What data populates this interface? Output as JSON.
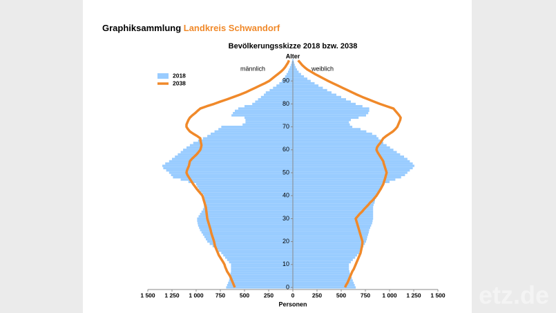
{
  "header": {
    "title": "Graphiksammlung",
    "title_highlight": "Landkreis Schwandorf"
  },
  "watermark": "etz.de",
  "chart_data": {
    "type": "population-pyramid",
    "title": "Bevölkerungsskizze 2018 bzw. 2038",
    "y_label": "Alter",
    "x_label": "Personen",
    "left_label": "männlich",
    "right_label": "weiblich",
    "ages": [
      0,
      1,
      2,
      3,
      4,
      5,
      6,
      7,
      8,
      9,
      10,
      11,
      12,
      13,
      14,
      15,
      16,
      17,
      18,
      19,
      20,
      21,
      22,
      23,
      24,
      25,
      26,
      27,
      28,
      29,
      30,
      31,
      32,
      33,
      34,
      35,
      36,
      37,
      38,
      39,
      40,
      41,
      42,
      43,
      44,
      45,
      46,
      47,
      48,
      49,
      50,
      51,
      52,
      53,
      54,
      55,
      56,
      57,
      58,
      59,
      60,
      61,
      62,
      63,
      64,
      65,
      66,
      67,
      68,
      69,
      70,
      71,
      72,
      73,
      74,
      75,
      76,
      77,
      78,
      79,
      80,
      81,
      82,
      83,
      84,
      85,
      86,
      87,
      88,
      89,
      90,
      91,
      92,
      93,
      94,
      95,
      96,
      97,
      98,
      99
    ],
    "ylim": [
      0,
      100
    ],
    "yticks": [
      0,
      10,
      20,
      30,
      40,
      50,
      60,
      70,
      80,
      90
    ],
    "xlim": [
      0,
      1500
    ],
    "left_xticks": [
      {
        "value": 1500,
        "label": "1 500"
      },
      {
        "value": 1250,
        "label": "1 250"
      },
      {
        "value": 1000,
        "label": "1 000"
      },
      750,
      500,
      250,
      0
    ],
    "right_xticks": [
      250,
      500,
      750,
      {
        "value": 1000,
        "label": "1 000"
      },
      {
        "value": 1250,
        "label": "1 250"
      },
      {
        "value": 1500,
        "label": "1 500"
      }
    ],
    "series": [
      {
        "name": "2018",
        "color": "#99ccff",
        "kind": "bar",
        "male": [
          690,
          680,
          670,
          660,
          655,
          650,
          645,
          640,
          640,
          640,
          640,
          660,
          680,
          700,
          720,
          740,
          770,
          800,
          830,
          860,
          885,
          900,
          915,
          930,
          945,
          960,
          970,
          980,
          985,
          990,
          990,
          975,
          960,
          945,
          930,
          920,
          920,
          920,
          920,
          920,
          920,
          940,
          960,
          975,
          990,
          1000,
          1080,
          1160,
          1240,
          1260,
          1280,
          1310,
          1340,
          1350,
          1320,
          1280,
          1250,
          1220,
          1190,
          1160,
          1135,
          1100,
          1065,
          1030,
          980,
          930,
          885,
          850,
          810,
          770,
          740,
          520,
          490,
          490,
          500,
          635,
          620,
          600,
          565,
          500,
          420,
          390,
          360,
          330,
          300,
          280,
          240,
          205,
          170,
          140,
          115,
          95,
          80,
          65,
          50,
          40,
          30,
          20,
          12,
          6
        ],
        "female": [
          650,
          640,
          630,
          620,
          610,
          600,
          590,
          585,
          580,
          580,
          580,
          600,
          620,
          645,
          665,
          685,
          700,
          715,
          730,
          745,
          757,
          765,
          770,
          778,
          785,
          790,
          800,
          810,
          820,
          825,
          830,
          830,
          830,
          830,
          830,
          830,
          835,
          845,
          850,
          860,
          865,
          880,
          895,
          910,
          925,
          935,
          1000,
          1060,
          1120,
          1160,
          1185,
          1210,
          1240,
          1257,
          1240,
          1210,
          1185,
          1150,
          1110,
          1075,
          1040,
          1005,
          970,
          935,
          910,
          885,
          865,
          820,
          760,
          700,
          615,
          590,
          580,
          600,
          680,
          757,
          780,
          790,
          790,
          720,
          650,
          600,
          550,
          500,
          450,
          400,
          355,
          310,
          265,
          225,
          185,
          150,
          115,
          85,
          60,
          43,
          30,
          20,
          12,
          7
        ]
      },
      {
        "name": "2038",
        "color": "#f0892a",
        "kind": "line",
        "male": [
          600,
          610,
          620,
          630,
          640,
          650,
          665,
          680,
          690,
          700,
          707,
          720,
          735,
          750,
          765,
          775,
          785,
          795,
          805,
          810,
          815,
          822,
          830,
          838,
          845,
          850,
          857,
          864,
          871,
          878,
          885,
          888,
          891,
          894,
          897,
          900,
          907,
          914,
          921,
          928,
          935,
          955,
          975,
          995,
          1012,
          1030,
          1045,
          1060,
          1075,
          1090,
          1100,
          1095,
          1085,
          1075,
          1070,
          1065,
          1045,
          1020,
          995,
          975,
          957,
          950,
          945,
          950,
          955,
          957,
          990,
          1030,
          1065,
          1085,
          1100,
          1100,
          1090,
          1080,
          1065,
          1040,
          1010,
          985,
          957,
          890,
          815,
          750,
          680,
          615,
          550,
          490,
          440,
          390,
          340,
          290,
          245,
          215,
          185,
          155,
          125,
          100,
          80,
          65,
          50,
          40
        ],
        "female": [
          540,
          550,
          565,
          575,
          585,
          595,
          605,
          615,
          630,
          640,
          650,
          660,
          670,
          680,
          690,
          700,
          705,
          710,
          715,
          718,
          720,
          713,
          706,
          699,
          692,
          685,
          678,
          671,
          664,
          657,
          650,
          670,
          690,
          715,
          735,
          757,
          780,
          800,
          825,
          845,
          865,
          880,
          895,
          910,
          922,
          935,
          942,
          950,
          957,
          963,
          970,
          963,
          955,
          948,
          940,
          935,
          920,
          905,
          890,
          875,
          865,
          870,
          885,
          905,
          920,
          935,
          965,
          1000,
          1035,
          1060,
          1080,
          1090,
          1100,
          1110,
          1115,
          1100,
          1080,
          1060,
          1040,
          970,
          900,
          840,
          780,
          720,
          665,
          615,
          565,
          515,
          465,
          415,
          365,
          320,
          275,
          230,
          190,
          150,
          120,
          95,
          75,
          55
        ]
      }
    ]
  }
}
